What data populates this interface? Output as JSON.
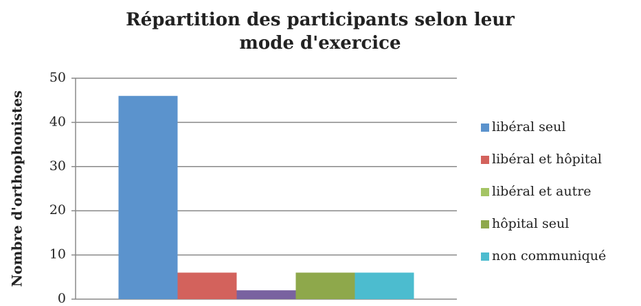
{
  "chart_data": {
    "type": "bar",
    "title": "Répartition des participants selon leur mode d'exercice",
    "y_label": "Nombre d'orthophonistes",
    "categories": [
      null
    ],
    "series": [
      {
        "name": "libéral seul",
        "color": "#5b93cd",
        "values": [
          46
        ]
      },
      {
        "name": "libéral et hôpital",
        "color": "#d3625c",
        "values": [
          6
        ]
      },
      {
        "name": "libéral et autre",
        "color": "#7962a0",
        "legend_color": "#a4c464",
        "values": [
          2
        ]
      },
      {
        "name": "hôpital seul",
        "color": "#8ea84b",
        "values": [
          6
        ]
      },
      {
        "name": "non communiqué",
        "color": "#4cbccf",
        "values": [
          6
        ]
      }
    ],
    "ylim": [
      0,
      50
    ],
    "yticks": [
      0,
      10,
      20,
      30,
      40,
      50
    ],
    "grid": true,
    "legend": "right"
  }
}
